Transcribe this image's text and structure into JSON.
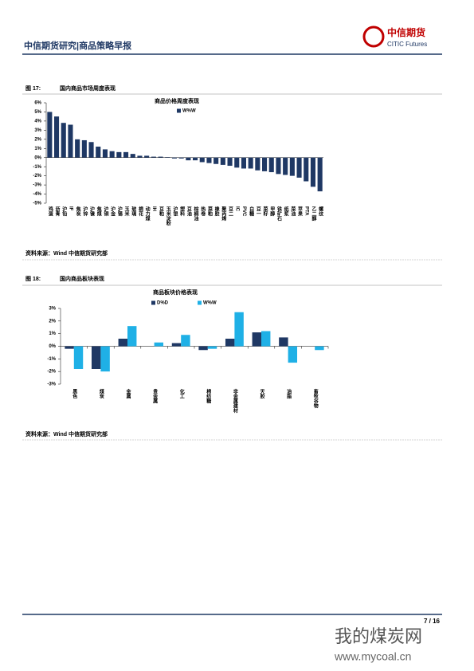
{
  "header": {
    "title": "中信期货研究|商品策略早报",
    "logo_cn": "中信期货",
    "logo_en": "CITIC Futures"
  },
  "figures": [
    {
      "label": "图 17:",
      "title": "国内商品市场周度表现",
      "source": "资料来源：Wind 中信期货研究部"
    },
    {
      "label": "图 18:",
      "title": "国内商品板块表现",
      "source": "资料来源：Wind 中信期货研究部"
    }
  ],
  "chart_data": [
    {
      "type": "bar",
      "title": "商品价格周度表现",
      "categories": [
        "鸡蛋",
        "沥青",
        "沪铅",
        "IF",
        "焦炭",
        "沪锌",
        "沪镍",
        "焦煤",
        "沪铜",
        "沪金",
        "沪锡",
        "玉米",
        "玻璃",
        "棉花",
        "动力煤",
        "IH",
        "豆粕",
        "玉米淀粉",
        "沪银",
        "塑料",
        "豆油",
        "棕榈油",
        "热卷",
        "菜粕",
        "橡胶",
        "聚丙烯",
        "豆二",
        "IC",
        "PVC",
        "白糖",
        "豆一",
        "菜籽",
        "甲醇",
        "铁矿石",
        "纸浆",
        "菜油",
        "苹果",
        "PTA",
        "乙二醇",
        "螺纹"
      ],
      "series": [
        {
          "name": "W%W",
          "color": "#1f3864",
          "values": [
            5.0,
            4.5,
            3.8,
            3.6,
            2.0,
            1.9,
            1.7,
            1.2,
            0.9,
            0.7,
            0.6,
            0.6,
            0.4,
            0.2,
            0.2,
            0.1,
            0.1,
            0.05,
            -0.1,
            -0.1,
            -0.3,
            -0.3,
            -0.5,
            -0.6,
            -0.7,
            -0.8,
            -0.9,
            -1.1,
            -1.2,
            -1.2,
            -1.4,
            -1.5,
            -1.6,
            -1.8,
            -1.9,
            -2.0,
            -2.2,
            -2.6,
            -3.2,
            -3.7
          ]
        }
      ],
      "ylim": [
        -5,
        6
      ],
      "yticks": [
        {
          "value": -5,
          "label": "-5%"
        },
        {
          "value": -4,
          "label": "-4%"
        },
        {
          "value": -3,
          "label": "-3%"
        },
        {
          "value": -2,
          "label": "-2%"
        },
        {
          "value": -1,
          "label": "-1%"
        },
        {
          "value": 0,
          "label": "0%"
        },
        {
          "value": 1,
          "label": "1%"
        },
        {
          "value": 2,
          "label": "2%"
        },
        {
          "value": 3,
          "label": "3%"
        },
        {
          "value": 4,
          "label": "4%"
        },
        {
          "value": 5,
          "label": "5%"
        },
        {
          "value": 6,
          "label": "6%"
        }
      ]
    },
    {
      "type": "bar",
      "title": "商品板块价格表现",
      "categories": [
        "黑色",
        "煤炭",
        "金属",
        "贵金属",
        "化工",
        "棉纺糖",
        "非金属建材",
        "天胶",
        "油脂",
        "畜牧谷物"
      ],
      "series": [
        {
          "name": "D%D",
          "color": "#1f3864",
          "values": [
            -0.2,
            -1.8,
            0.6,
            0.0,
            0.25,
            -0.3,
            0.6,
            1.1,
            0.7,
            0.0
          ]
        },
        {
          "name": "W%W",
          "color": "#1fb0e6",
          "values": [
            -1.8,
            -2.0,
            1.6,
            0.3,
            0.9,
            -0.2,
            2.7,
            1.2,
            -1.3,
            -0.3
          ]
        }
      ],
      "ylim": [
        -3,
        3
      ],
      "yticks": [
        {
          "value": -3,
          "label": "-3%"
        },
        {
          "value": -2,
          "label": "-2%"
        },
        {
          "value": -1,
          "label": "-1%"
        },
        {
          "value": 0,
          "label": "0%"
        },
        {
          "value": 1,
          "label": "1%"
        },
        {
          "value": 2,
          "label": "2%"
        },
        {
          "value": 3,
          "label": "3%"
        }
      ]
    }
  ],
  "footer": {
    "page": "7 / 16"
  },
  "watermark": {
    "name": "我的煤炭网",
    "url": "www.mycoal.cn"
  }
}
